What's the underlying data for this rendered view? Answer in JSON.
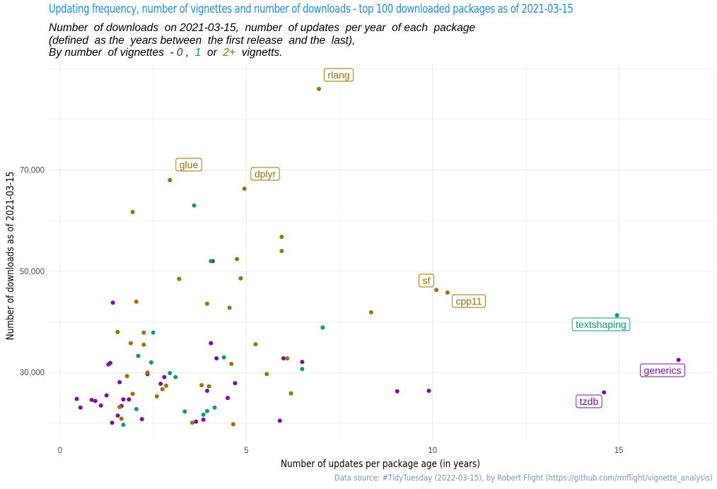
{
  "header": {
    "title": "Updating frequency, number of vignettes and number of downloads - top 100 downloaded packages as of 2021-03-15",
    "subtitle_line1": "Number  of downloads  on 2021-03-15,  number  of updates  per year  of each  package",
    "subtitle_line2": "(defined  as the  years between  the first release  and the  last),",
    "subtitle_line3_prefix": "By number  of vignettes  - ",
    "subtitle_v0": "0",
    "subtitle_sep1": " ,  ",
    "subtitle_v1": "1",
    "subtitle_sep2": "  or  ",
    "subtitle_v2": "2+",
    "subtitle_suffix": "  vignetts."
  },
  "caption": "Data source: #TidyTuesday (2022-03-15), by Robert Flight (https://github.com/rmflight/vignette_analysis)",
  "colors": {
    "v0": "#7b0fa5",
    "v1": "#0b9b7a",
    "v2": "#9b7300",
    "grid": "#ebebeb"
  },
  "chart_data": {
    "type": "scatter",
    "xlabel": "Number of updates per package age (in years)",
    "ylabel": "Number of downloads as of 2021-03-15",
    "xlim": [
      -0.3,
      17.5
    ],
    "ylim": [
      16500,
      91000
    ],
    "x_ticks": [
      0,
      5,
      10,
      15
    ],
    "x_tick_labels": [
      "0",
      "5",
      "10",
      "15"
    ],
    "y_ticks": [
      30000,
      50000,
      70000
    ],
    "y_tick_labels": [
      "30,000",
      "50,000",
      "70,000"
    ],
    "grid": true,
    "legend": "in subtitle",
    "series": [
      {
        "vignettes": "0",
        "points": [
          [
            0.45,
            24800
          ],
          [
            0.55,
            23100
          ],
          [
            0.85,
            24600
          ],
          [
            0.95,
            24400
          ],
          [
            1.1,
            23500
          ],
          [
            1.25,
            25500
          ],
          [
            1.3,
            31600
          ],
          [
            1.35,
            31900
          ],
          [
            1.4,
            20100
          ],
          [
            1.42,
            43800
          ],
          [
            1.55,
            21500
          ],
          [
            1.6,
            28100
          ],
          [
            1.65,
            23400
          ],
          [
            1.7,
            24700
          ],
          [
            1.85,
            24700
          ],
          [
            2.2,
            20800
          ],
          [
            2.35,
            29700
          ],
          [
            2.7,
            27800
          ],
          [
            2.8,
            29100
          ],
          [
            3.65,
            20300
          ],
          [
            3.85,
            20700
          ],
          [
            3.95,
            26400
          ],
          [
            4.05,
            35800
          ],
          [
            4.1,
            52000
          ],
          [
            4.2,
            32800
          ],
          [
            4.5,
            25000
          ],
          [
            4.7,
            27900
          ],
          [
            5.9,
            20500
          ],
          [
            6.0,
            32800
          ],
          [
            6.5,
            32100
          ],
          [
            9.05,
            26300
          ],
          [
            9.9,
            26400
          ],
          [
            14.6,
            26100
          ],
          [
            16.6,
            32500
          ]
        ]
      },
      {
        "vignettes": "1",
        "points": [
          [
            1.7,
            19700
          ],
          [
            2.05,
            22800
          ],
          [
            2.1,
            33300
          ],
          [
            2.45,
            32000
          ],
          [
            2.5,
            37900
          ],
          [
            2.95,
            29900
          ],
          [
            3.1,
            29100
          ],
          [
            3.35,
            22300
          ],
          [
            3.6,
            63000
          ],
          [
            3.85,
            21700
          ],
          [
            3.95,
            22400
          ],
          [
            4.05,
            52000
          ],
          [
            4.15,
            23100
          ],
          [
            4.4,
            33000
          ],
          [
            6.5,
            30700
          ],
          [
            7.05,
            38900
          ],
          [
            14.95,
            41300
          ]
        ]
      },
      {
        "vignettes": "2+",
        "points": [
          [
            1.55,
            38000
          ],
          [
            1.6,
            23200
          ],
          [
            1.65,
            20900
          ],
          [
            1.8,
            29300
          ],
          [
            1.9,
            35800
          ],
          [
            1.95,
            61700
          ],
          [
            1.95,
            25800
          ],
          [
            2.05,
            44000
          ],
          [
            2.25,
            37900
          ],
          [
            2.25,
            35500
          ],
          [
            2.35,
            30000
          ],
          [
            2.6,
            25300
          ],
          [
            2.75,
            26700
          ],
          [
            2.85,
            27400
          ],
          [
            2.95,
            68000
          ],
          [
            3.2,
            48500
          ],
          [
            3.55,
            20100
          ],
          [
            3.8,
            27500
          ],
          [
            3.95,
            43600
          ],
          [
            4.0,
            27300
          ],
          [
            4.55,
            42800
          ],
          [
            4.6,
            31700
          ],
          [
            4.65,
            19800
          ],
          [
            4.75,
            52400
          ],
          [
            4.85,
            48600
          ],
          [
            4.95,
            66300
          ],
          [
            5.25,
            35600
          ],
          [
            5.55,
            29700
          ],
          [
            5.95,
            54000
          ],
          [
            5.95,
            56800
          ],
          [
            6.1,
            32800
          ],
          [
            6.2,
            25900
          ],
          [
            6.95,
            86000
          ],
          [
            8.35,
            41900
          ],
          [
            10.1,
            46300
          ],
          [
            10.4,
            45800
          ]
        ]
      }
    ],
    "annotations": [
      {
        "label": "rlang",
        "vignettes": "2+"
      },
      {
        "label": "glue",
        "vignettes": "2+"
      },
      {
        "label": "dplyr",
        "vignettes": "2+"
      },
      {
        "label": "sf",
        "vignettes": "2+"
      },
      {
        "label": "cpp11",
        "vignettes": "2+"
      },
      {
        "label": "textshaping",
        "vignettes": "1"
      },
      {
        "label": "generics",
        "vignettes": "0"
      },
      {
        "label": "tzdb",
        "vignettes": "0"
      }
    ]
  }
}
